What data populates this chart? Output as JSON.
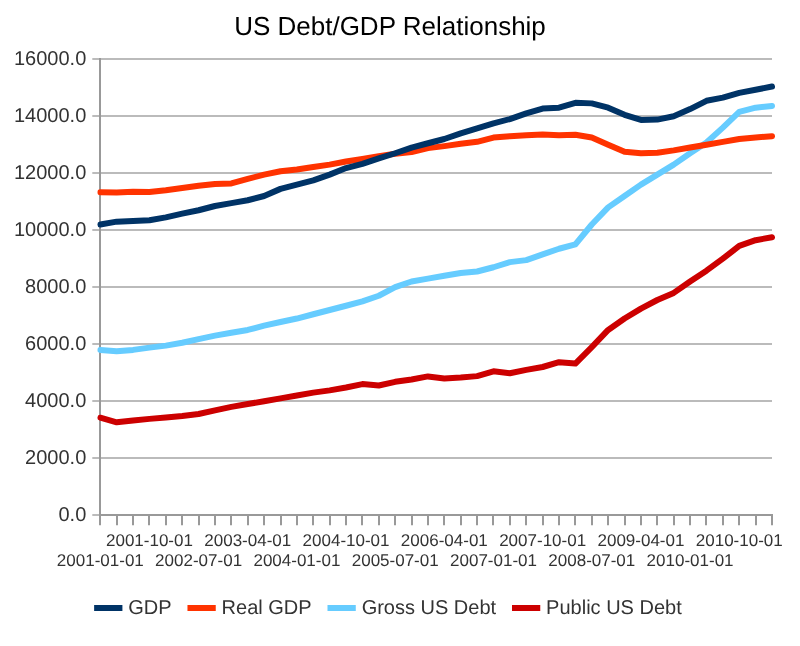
{
  "chart_data": {
    "type": "line",
    "title": "US Debt/GDP Relationship",
    "categories": [
      "2001-01-01",
      null,
      null,
      "2001-10-01",
      null,
      null,
      "2002-07-01",
      null,
      null,
      "2003-04-01",
      null,
      null,
      "2004-01-01",
      null,
      null,
      "2004-10-01",
      null,
      null,
      "2005-07-01",
      null,
      null,
      "2006-04-01",
      null,
      null,
      "2007-01-01",
      null,
      null,
      "2007-10-01",
      null,
      null,
      "2008-07-01",
      null,
      null,
      "2009-04-01",
      null,
      null,
      "2010-01-01",
      null,
      null,
      "2010-10-01",
      null,
      null
    ],
    "series": [
      {
        "name": "GDP",
        "color": "#003366",
        "values": [
          10200,
          10300,
          10320,
          10350,
          10450,
          10580,
          10700,
          10850,
          10950,
          11050,
          11200,
          11450,
          11600,
          11750,
          11950,
          12180,
          12330,
          12520,
          12700,
          12900,
          13050,
          13200,
          13400,
          13570,
          13750,
          13900,
          14100,
          14270,
          14300,
          14470,
          14450,
          14300,
          14050,
          13870,
          13880,
          14000,
          14250,
          14540,
          14650,
          14820,
          14930,
          15040
        ]
      },
      {
        "name": "Real GDP",
        "color": "#ff3300",
        "values": [
          11330,
          11320,
          11350,
          11340,
          11400,
          11480,
          11560,
          11620,
          11640,
          11800,
          11950,
          12070,
          12130,
          12220,
          12300,
          12410,
          12500,
          12600,
          12680,
          12740,
          12880,
          12950,
          13030,
          13100,
          13250,
          13300,
          13330,
          13360,
          13330,
          13350,
          13250,
          13000,
          12750,
          12700,
          12720,
          12800,
          12900,
          13000,
          13100,
          13200,
          13250,
          13300
        ]
      },
      {
        "name": "Gross US Debt",
        "color": "#66ccff",
        "values": [
          5800,
          5750,
          5800,
          5880,
          5950,
          6050,
          6180,
          6300,
          6400,
          6500,
          6650,
          6780,
          6900,
          7050,
          7200,
          7350,
          7500,
          7700,
          8000,
          8200,
          8300,
          8400,
          8500,
          8550,
          8700,
          8880,
          8950,
          9150,
          9350,
          9500,
          10200,
          10800,
          11200,
          11600,
          11950,
          12300,
          12700,
          13080,
          13600,
          14150,
          14300,
          14360
        ]
      },
      {
        "name": "Public US Debt",
        "color": "#cc0000",
        "values": [
          3420,
          3260,
          3320,
          3380,
          3430,
          3480,
          3550,
          3680,
          3800,
          3900,
          4000,
          4100,
          4200,
          4300,
          4380,
          4480,
          4600,
          4550,
          4680,
          4760,
          4870,
          4800,
          4830,
          4880,
          5050,
          4980,
          5100,
          5200,
          5370,
          5320,
          5900,
          6500,
          6900,
          7250,
          7550,
          7800,
          8200,
          8580,
          9000,
          9450,
          9650,
          9750
        ]
      }
    ],
    "ylim": [
      0,
      16000
    ],
    "yticks": [
      {
        "value": 0,
        "label": "0.0"
      },
      {
        "value": 2000,
        "label": "2000.0"
      },
      {
        "value": 4000,
        "label": "4000.0"
      },
      {
        "value": 6000,
        "label": "6000.0"
      },
      {
        "value": 8000,
        "label": "8000.0"
      },
      {
        "value": 10000,
        "label": "10000.0"
      },
      {
        "value": 12000,
        "label": "12000.0"
      },
      {
        "value": 14000,
        "label": "14000.0"
      },
      {
        "value": 16000,
        "label": "16000.0"
      }
    ],
    "grid": "y",
    "legend": "bottom",
    "marker": "none",
    "line_style": "solid"
  }
}
